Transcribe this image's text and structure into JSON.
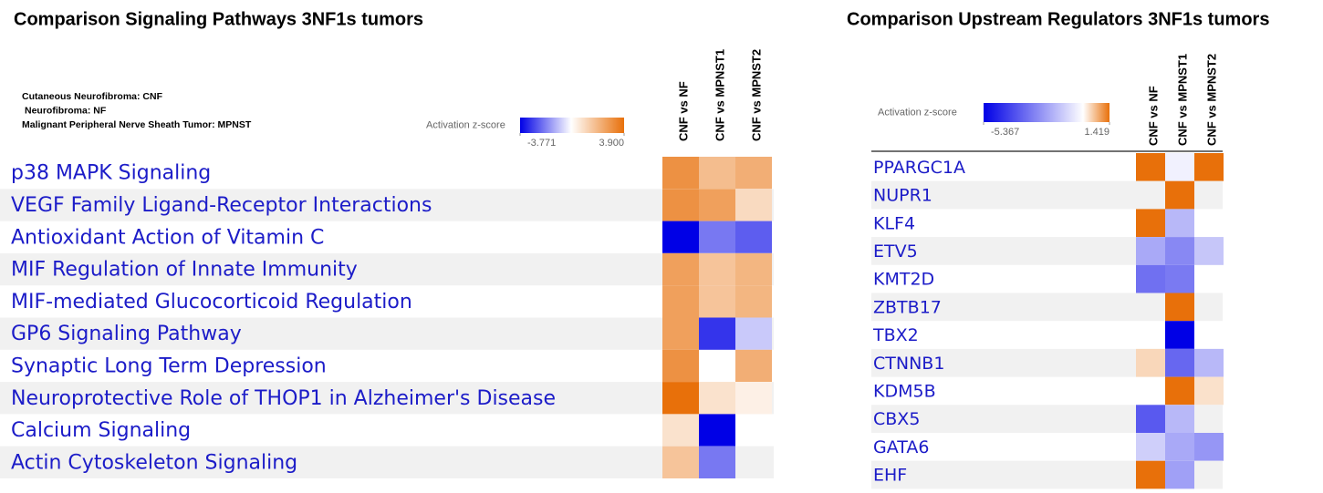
{
  "chart_data": [
    {
      "type": "heatmap",
      "title": "Comparison Signaling Pathways 3NF1s tumors",
      "notes": [
        "Cutaneous Neurofibroma: CNF",
        "Neurofibroma: NF",
        "Malignant Peripheral Nerve Sheath Tumor: MPNST"
      ],
      "legend_title": "Activation z-score",
      "zlim": [
        -3.771,
        3.9
      ],
      "zticks": [
        -3.771,
        {
          "value": 3.9,
          "label": "3.900"
        }
      ],
      "low_color": "#0000e6",
      "high_color": "#e8700a",
      "columns": [
        "CNF vs NF",
        "CNF vs MPNST1",
        "CNF vs MPNST2"
      ],
      "rows": [
        "p38 MAPK Signaling",
        "VEGF Family Ligand-Receptor Interactions",
        "Antioxidant Action of Vitamin C",
        "MIF Regulation of Innate Immunity",
        "MIF-mediated Glucocorticoid Regulation",
        "GP6 Signaling Pathway",
        "Synaptic Long Term Depression",
        "Neuroprotective Role of THOP1 in Alzheimer's Disease",
        "Calcium Signaling",
        "Actin Cytoskeleton Signaling"
      ],
      "values": [
        [
          3.0,
          1.8,
          2.2
        ],
        [
          3.0,
          2.6,
          1.0
        ],
        [
          -3.771,
          -2.0,
          -2.4
        ],
        [
          2.6,
          1.6,
          2.0
        ],
        [
          2.6,
          1.6,
          2.0
        ],
        [
          2.6,
          -3.0,
          -0.8
        ],
        [
          3.0,
          null,
          2.2
        ],
        [
          3.9,
          0.8,
          0.4
        ],
        [
          0.8,
          -3.771,
          null
        ],
        [
          1.6,
          -2.0,
          null
        ]
      ]
    },
    {
      "type": "heatmap",
      "title": "Comparison Upstream Regulators  3NF1s tumors",
      "legend_title": "Activation z-score",
      "zlim": [
        -5.367,
        1.419
      ],
      "zticks": [
        -5.367,
        1.419
      ],
      "low_color": "#0000e6",
      "high_color": "#e8700a",
      "columns": [
        "CNF vs NF",
        "CNF vs MPNST1",
        "CNF vs MPNST2"
      ],
      "rows": [
        "PPARGC1A",
        "NUPR1",
        "KLF4",
        "ETV5",
        "KMT2D",
        "ZBTB17",
        "TBX2",
        "CTNNB1",
        "KDM5B",
        "CBX5",
        "GATA6",
        "EHF"
      ],
      "values": [
        [
          1.419,
          -0.3,
          1.419
        ],
        [
          null,
          1.419,
          null
        ],
        [
          1.419,
          -1.5,
          null
        ],
        [
          -1.8,
          -2.5,
          -1.2
        ],
        [
          -3.0,
          -2.8,
          null
        ],
        [
          null,
          1.419,
          null
        ],
        [
          null,
          -5.367,
          null
        ],
        [
          0.4,
          -3.2,
          -1.5
        ],
        [
          null,
          1.419,
          0.3
        ],
        [
          -3.5,
          -1.5,
          null
        ],
        [
          -1.0,
          -1.8,
          -2.2
        ],
        [
          1.419,
          -2.0,
          null
        ]
      ]
    }
  ]
}
